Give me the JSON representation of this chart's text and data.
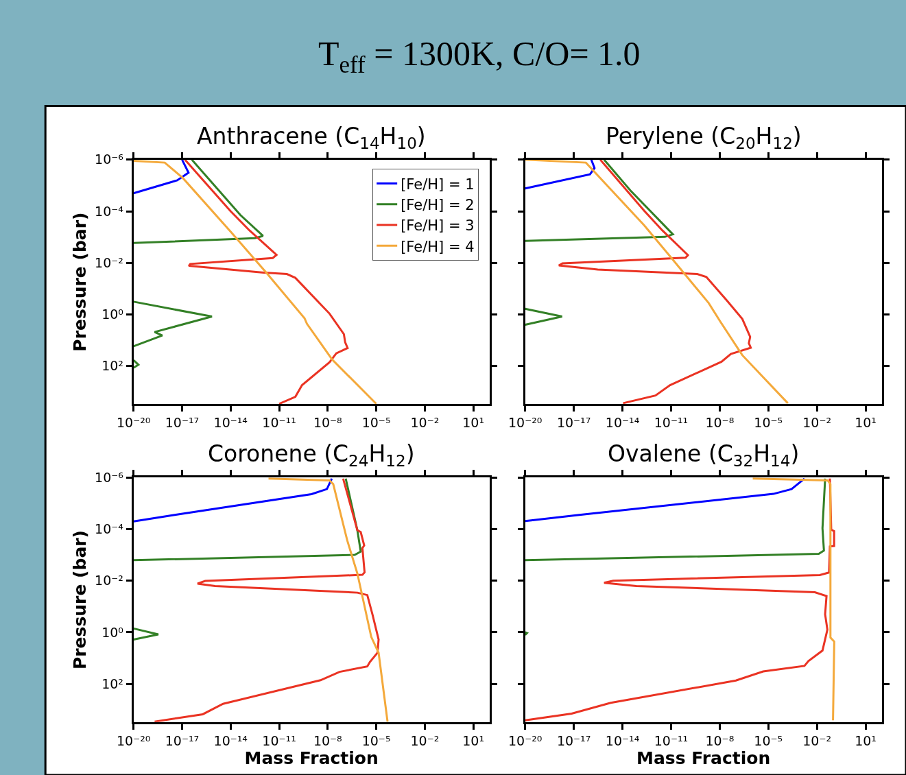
{
  "chart_data": [
    {
      "type": "line",
      "title": "Anthracene (C$_{14}$H$_{10}$)",
      "ylabel": "Pressure (bar)",
      "annotations": [
        "T$_{eff}$ = 1300K, C/O= 1.0"
      ],
      "log": "xy",
      "legend": "top right",
      "xlim": [
        1e-20,
        100
      ],
      "ylim": [
        3000,
        1e-06
      ],
      "xticks": [
        {
          "value": 1e-20,
          "label": "10⁻²⁰"
        },
        {
          "value": 1e-17,
          "label": "10⁻¹⁷"
        },
        {
          "value": 1e-14,
          "label": "10⁻¹⁴"
        },
        {
          "value": 1e-11,
          "label": "10⁻¹¹"
        },
        {
          "value": 1e-08,
          "label": "10⁻⁸"
        },
        {
          "value": 1e-05,
          "label": "10⁻⁵"
        },
        {
          "value": 0.01,
          "label": "10⁻²"
        },
        {
          "value": 10,
          "label": "10¹"
        }
      ],
      "yticks": [
        {
          "value": 1e-06,
          "label": "10⁻⁶"
        },
        {
          "value": 0.0001,
          "label": "10⁻⁴"
        },
        {
          "value": 0.01,
          "label": "10⁻²"
        },
        {
          "value": 1,
          "label": "10⁰"
        },
        {
          "value": 100,
          "label": "10²"
        }
      ],
      "series": [
        {
          "name": "[Fe/H] = 1",
          "color": "#0000ff",
          "x": [
            1e-17,
            2.5e-17,
            5e-18,
            1e-20
          ],
          "values": [
            1e-06,
            3.2e-06,
            6.3e-06,
            2e-05
          ]
        },
        {
          "name": "[Fe/H] = 2",
          "color": "#338026",
          "x": [
            4e-17,
            4e-14,
            1e-12,
            3.2e-13,
            1e-20,
            null,
            1e-20,
            7e-16,
            2e-19,
            6e-19,
            1e-20,
            null,
            1e-20,
            2e-20,
            1e-20
          ],
          "values": [
            1e-06,
            0.00014,
            0.0009,
            0.0011,
            0.0017,
            null,
            0.32,
            1.2,
            4.8,
            6.5,
            17,
            null,
            59,
            89,
            117
          ]
        },
        {
          "name": "[Fe/H] = 3",
          "color": "#ea3323",
          "x": [
            1.5e-17,
            1e-14,
            1.5e-13,
            6.9e-12,
            4e-12,
            3.2e-17,
            2.6e-17,
            1.1e-12,
            3e-11,
            1e-10,
            1.3e-08,
            1e-07,
            1.2e-07,
            1.7e-07,
            3.4e-08,
            1.3e-08,
            2.6e-10,
            1e-10,
            1e-11
          ],
          "values": [
            1e-06,
            0.0001,
            0.00056,
            0.0049,
            0.0065,
            0.011,
            0.013,
            0.024,
            0.027,
            0.038,
            0.93,
            5.8,
            12,
            20,
            32,
            71,
            550,
            1550,
            2900
          ]
        },
        {
          "name": "[Fe/H] = 4",
          "color": "#f4a93b",
          "x": [
            1e-20,
            8.5e-19,
            1.1e-17,
            1e-14,
            1.6e-12,
            3.7e-10,
            5.2e-10,
            1.9e-08,
            1e-05
          ],
          "values": [
            1.1e-06,
            1.3e-06,
            5.1e-06,
            0.00062,
            0.024,
            1.4,
            2.3,
            56,
            2900
          ]
        }
      ]
    },
    {
      "type": "line",
      "title": "Perylene (C$_{20}$H$_{12}$)",
      "log": "xy",
      "tick_labels": "x",
      "xlim": [
        1e-20,
        100
      ],
      "ylim": [
        3000,
        1e-06
      ],
      "xticks": [
        {
          "value": 1e-20,
          "label": "10⁻²⁰"
        },
        {
          "value": 1e-17,
          "label": "10⁻¹⁷"
        },
        {
          "value": 1e-14,
          "label": "10⁻¹⁴"
        },
        {
          "value": 1e-11,
          "label": "10⁻¹¹"
        },
        {
          "value": 1e-08,
          "label": "10⁻⁸"
        },
        {
          "value": 1e-05,
          "label": "10⁻⁵"
        },
        {
          "value": 0.01,
          "label": "10⁻²"
        },
        {
          "value": 10,
          "label": "10¹"
        }
      ],
      "yticks": [
        {
          "value": 1e-06,
          "label": null
        },
        {
          "value": 0.0001,
          "label": null
        },
        {
          "value": 0.01,
          "label": null
        },
        {
          "value": 1,
          "label": null
        },
        {
          "value": 100,
          "label": null
        }
      ],
      "series": [
        {
          "color": "#0000ff",
          "x": [
            1.2e-16,
            1.9e-16,
            1e-16,
            1e-20
          ],
          "values": [
            1e-06,
            2.1e-06,
            3.7e-06,
            1.3e-05
          ]
        },
        {
          "color": "#338026",
          "x": [
            7.4e-16,
            3.5e-14,
            1.3e-11,
            4.2e-12,
            1e-20,
            null,
            1e-20,
            1.9e-18,
            1e-20
          ],
          "values": [
            1e-06,
            1.7e-05,
            0.00078,
            0.00098,
            0.0014,
            null,
            0.6,
            1.2,
            2.5
          ]
        },
        {
          "color": "#ea3323",
          "x": [
            4.3e-16,
            2.2e-13,
            2.9e-12,
            1.1e-10,
            7.8e-11,
            2e-18,
            1.2e-18,
            3e-16,
            4.1e-10,
            1.5e-09,
            2.8e-08,
            2.5e-07,
            7.6e-07,
            6.3e-07,
            8.3e-07,
            4.9e-08,
            1.3e-08,
            8.7e-12,
            1.1e-12,
            1.1e-14
          ],
          "values": [
            1e-06,
            9.5e-05,
            0.00055,
            0.005,
            0.0063,
            0.0105,
            0.0126,
            0.018,
            0.027,
            0.035,
            0.29,
            1.5,
            7.4,
            13,
            19.5,
            34,
            68,
            550,
            1380,
            2750
          ]
        },
        {
          "color": "#f4a93b",
          "x": [
            1e-20,
            5.6e-17,
            8.9e-16,
            2.2e-13,
            8.7e-12,
            2.1e-09,
            1.1e-08,
            2.5e-07,
            0.00016
          ],
          "values": [
            1e-06,
            1.3e-06,
            8.5e-06,
            0.00035,
            0.0056,
            0.36,
            1.9,
            38,
            2750
          ]
        }
      ]
    },
    {
      "type": "line",
      "title": "Coronene (C$_{24}$H$_{12}$)",
      "xlabel": "Mass Fraction",
      "ylabel": "Pressure (bar)",
      "log": "xy",
      "xlim": [
        1e-20,
        100
      ],
      "ylim": [
        3000,
        1e-06
      ],
      "xticks": [
        {
          "value": 1e-20,
          "label": "10⁻²⁰"
        },
        {
          "value": 1e-17,
          "label": "10⁻¹⁷"
        },
        {
          "value": 1e-14,
          "label": "10⁻¹⁴"
        },
        {
          "value": 1e-11,
          "label": "10⁻¹¹"
        },
        {
          "value": 1e-08,
          "label": "10⁻⁸"
        },
        {
          "value": 1e-05,
          "label": "10⁻⁵"
        },
        {
          "value": 0.01,
          "label": "10⁻²"
        },
        {
          "value": 10,
          "label": "10¹"
        }
      ],
      "yticks": [
        {
          "value": 1e-06,
          "label": "10⁻⁶"
        },
        {
          "value": 0.0001,
          "label": "10⁻⁴"
        },
        {
          "value": 0.01,
          "label": "10⁻²"
        },
        {
          "value": 1,
          "label": "10⁰"
        },
        {
          "value": 100,
          "label": "10²"
        }
      ],
      "series": [
        {
          "color": "#0000ff",
          "x": [
            1.8e-08,
            8.9e-09,
            1e-09,
            3.5e-18,
            1e-20
          ],
          "values": [
            1.1e-06,
            2.8e-06,
            4.4e-06,
            2.8e-05,
            5e-05
          ]
        },
        {
          "color": "#338026",
          "x": [
            1.3e-07,
            6.8e-07,
            1.1e-06,
            4.7e-07,
            1e-20,
            null,
            1e-20,
            3.4e-19,
            1e-20
          ],
          "values": [
            1.1e-06,
            0.00011,
            0.00074,
            0.001,
            0.0016,
            null,
            0.71,
            1.2,
            1.9
          ]
        },
        {
          "color": "#ea3323",
          "x": [
            9e-08,
            6.8e-07,
            1.1e-06,
            1.8e-06,
            1.4e-06,
            1.9e-06,
            1.4e-06,
            2.7e-16,
            9e-17,
            1.1e-15,
            6.8e-07,
            2.8e-06,
            5.8e-06,
            1.4e-05,
            1.2e-05,
            4.1e-06,
            2.8e-06,
            5.4e-08,
            3.6e-09,
            3.4e-15,
            1.9e-16,
            2e-19
          ],
          "values": [
            1.1e-06,
            0.00011,
            0.00013,
            0.00043,
            0.00054,
            0.0047,
            0.0059,
            0.0102,
            0.0129,
            0.016,
            0.029,
            0.036,
            0.2,
            1.9,
            6.2,
            14,
            21,
            34,
            72,
            590,
            1500,
            2900
          ]
        },
        {
          "color": "#f4a93b",
          "x": [
            2.2e-12,
            1.3e-08,
            2.2e-08,
            1.6e-07,
            6.8e-07,
            4.9e-06,
            1.4e-05,
            5e-05
          ],
          "values": [
            1.1e-06,
            1.3e-06,
            1.8e-06,
            0.00027,
            0.0052,
            1.5,
            6.2,
            2900
          ]
        }
      ]
    },
    {
      "type": "line",
      "title": "Ovalene (C$_{32}$H$_{14}$)",
      "xlabel": "Mass Fraction",
      "log": "xy",
      "tick_labels": "x",
      "xlim": [
        1e-20,
        100
      ],
      "ylim": [
        3000,
        1e-06
      ],
      "xticks": [
        {
          "value": 1e-20,
          "label": "10⁻²⁰"
        },
        {
          "value": 1e-17,
          "label": "10⁻¹⁷"
        },
        {
          "value": 1e-14,
          "label": "10⁻¹⁴"
        },
        {
          "value": 1e-11,
          "label": "10⁻¹¹"
        },
        {
          "value": 1e-08,
          "label": "10⁻⁸"
        },
        {
          "value": 1e-05,
          "label": "10⁻⁵"
        },
        {
          "value": 0.01,
          "label": "10⁻²"
        },
        {
          "value": 10,
          "label": "10¹"
        }
      ],
      "yticks": [
        {
          "value": 1e-06,
          "label": null
        },
        {
          "value": 0.0001,
          "label": null
        },
        {
          "value": 0.01,
          "label": null
        },
        {
          "value": 1,
          "label": null
        },
        {
          "value": 100,
          "label": null
        }
      ],
      "series": [
        {
          "color": "#0000ff",
          "x": [
            0.0017,
            0.00027,
            2.1e-05,
            2.2e-17,
            1e-20
          ],
          "values": [
            1.1e-06,
            2.8e-06,
            4.3e-06,
            2.8e-05,
            4.9e-05
          ]
        },
        {
          "color": "#338026",
          "x": [
            0.032,
            0.022,
            0.027,
            0.013,
            1e-20
          ],
          "values": [
            1.1e-06,
            9.3e-05,
            0.00068,
            0.00091,
            0.0016
          ]
        },
        {
          "color": "#338026",
          "x": [
            1e-20,
            1.3e-20,
            1e-20
          ],
          "values": [
            1.0,
            1.07,
            1.26
          ]
        },
        {
          "color": "#ea3323",
          "x": [
            0.063,
            0.076,
            0.115,
            0.115,
            0.063,
            0.056,
            0.015,
            2.7e-15,
            7.4e-16,
            7.2e-14,
            0.0074,
            0.039,
            0.032,
            0.044,
            0.022,
            0.003,
            0.0017,
            4.8e-06,
            1e-07,
            1.9e-15,
            7.4e-18,
            1e-20
          ],
          "values": [
            1.1e-06,
            0.000105,
            0.00012,
            0.00045,
            0.00047,
            0.0048,
            0.006,
            0.01,
            0.012,
            0.016,
            0.028,
            0.039,
            0.2,
            0.79,
            5.1,
            13,
            20,
            33,
            74,
            540,
            1410,
            2570
          ]
        },
        {
          "color": "#f4a93b",
          "x": [
            1.1e-06,
            0.047,
            0.068,
            0.068,
            0.117,
            0.098
          ],
          "values": [
            1.1e-06,
            1.3e-06,
            1.8e-06,
            1.6,
            2.3,
            2570
          ]
        }
      ]
    }
  ]
}
